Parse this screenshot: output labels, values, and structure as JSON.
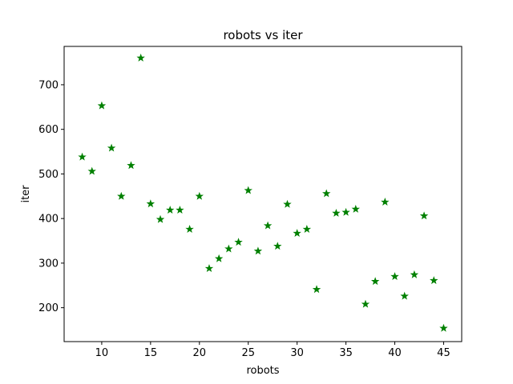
{
  "chart_data": {
    "type": "scatter",
    "title": "robots vs iter",
    "xlabel": "robots",
    "ylabel": "iter",
    "xlim": [
      6.15,
      46.85
    ],
    "ylim": [
      124,
      786
    ],
    "x_ticks": [
      10,
      15,
      20,
      25,
      30,
      35,
      40,
      45
    ],
    "y_ticks": [
      200,
      300,
      400,
      500,
      600,
      700
    ],
    "grid": false,
    "marker": "star",
    "color": "#008000",
    "series": [
      {
        "x": [
          8,
          9,
          10,
          11,
          12,
          13,
          14,
          15,
          16,
          17,
          18,
          19,
          20,
          21,
          22,
          23,
          24,
          25,
          26,
          27,
          28,
          29,
          30,
          31,
          32,
          33,
          34,
          35,
          36,
          37,
          38,
          39,
          40,
          41,
          42,
          43,
          44,
          45
        ],
        "y": [
          538,
          506,
          653,
          558,
          450,
          519,
          760,
          433,
          398,
          419,
          419,
          376,
          450,
          288,
          310,
          332,
          347,
          463,
          327,
          384,
          338,
          432,
          367,
          376,
          241,
          456,
          412,
          414,
          421,
          208,
          259,
          437,
          270,
          226,
          274,
          406,
          261,
          154
        ]
      }
    ]
  }
}
